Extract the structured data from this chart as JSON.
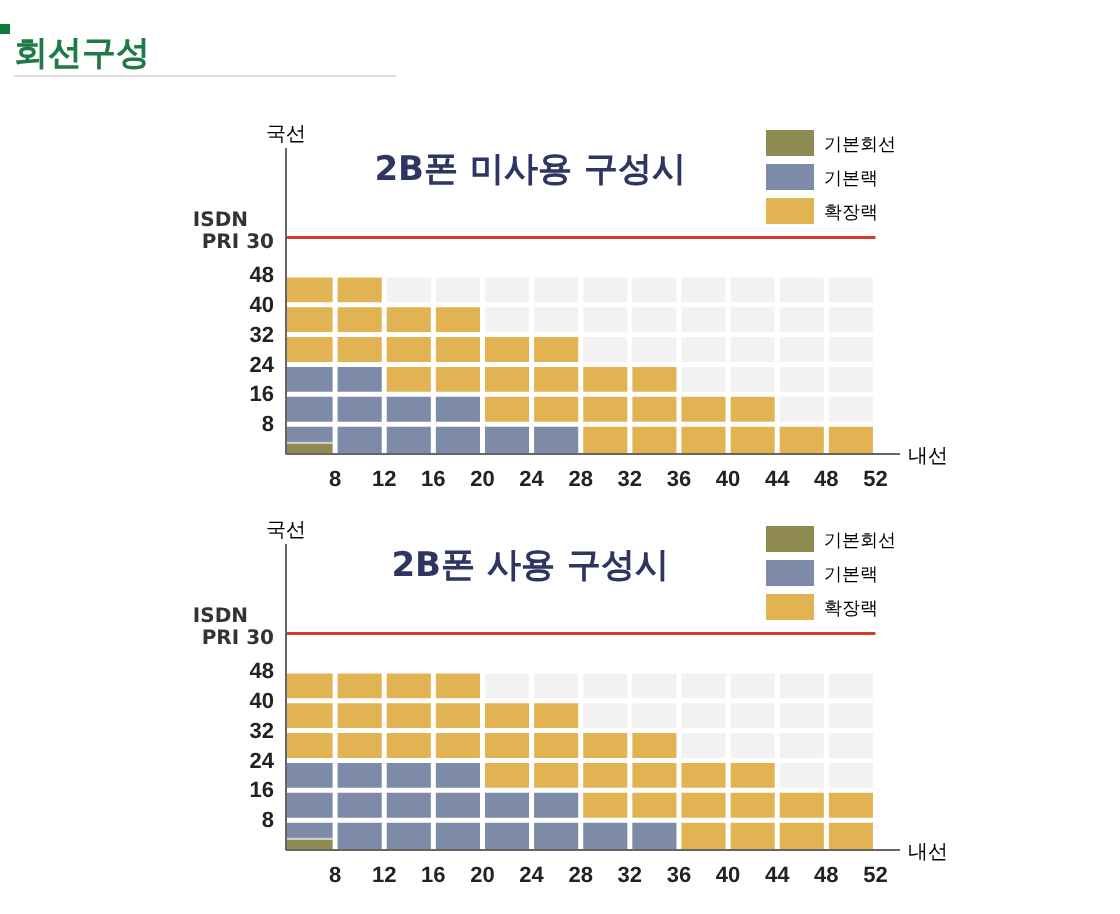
{
  "chart_data": [
    {
      "type": "bar",
      "stacked": true,
      "title": "2B폰 미사용 구성시",
      "xlabel": "내선",
      "ylabel": "국선",
      "annotations": [
        "회선구성"
      ],
      "x": [
        6,
        10,
        14,
        18,
        22,
        26,
        30,
        34,
        38,
        42,
        46,
        50
      ],
      "series": [
        {
          "name": "기본회선",
          "color": "#8f8a52",
          "values": [
            3,
            0,
            0,
            0,
            0,
            0,
            0,
            0,
            0,
            0,
            0,
            0
          ]
        },
        {
          "name": "기본랙",
          "color": "#7d8aa8",
          "values": [
            21,
            24,
            16,
            16,
            8,
            8,
            0,
            0,
            0,
            0,
            0,
            0
          ]
        },
        {
          "name": "확장랙",
          "color": "#e2b352",
          "values": [
            24,
            24,
            24,
            24,
            24,
            24,
            24,
            24,
            16,
            16,
            8,
            8
          ]
        },
        {
          "color": "#f2f2f2",
          "values": [
            0,
            0,
            8,
            8,
            16,
            16,
            24,
            24,
            32,
            32,
            40,
            40
          ]
        }
      ],
      "xlim": [
        4,
        54
      ],
      "xticks": [
        8,
        12,
        16,
        20,
        24,
        28,
        32,
        36,
        40,
        44,
        48,
        52
      ],
      "ylim": [
        0,
        82
      ],
      "yticks": [
        8,
        16,
        24,
        32,
        40,
        48
      ],
      "ref_lines": [
        {
          "axis": "y",
          "value": 58,
          "label": "ISDN PRI 30",
          "color": "#d83a2e"
        }
      ],
      "grid": true,
      "legend": "top right"
    },
    {
      "type": "bar",
      "stacked": true,
      "title": "2B폰 사용 구성시",
      "xlabel": "내선",
      "ylabel": "국선",
      "x": [
        6,
        10,
        14,
        18,
        22,
        26,
        30,
        34,
        38,
        42,
        46,
        50
      ],
      "series": [
        {
          "name": "기본회선",
          "color": "#8f8a52",
          "values": [
            3,
            0,
            0,
            0,
            0,
            0,
            0,
            0,
            0,
            0,
            0,
            0
          ]
        },
        {
          "name": "기본랙",
          "color": "#7d8aa8",
          "values": [
            21,
            24,
            24,
            24,
            16,
            16,
            8,
            8,
            0,
            0,
            0,
            0
          ]
        },
        {
          "name": "확장랙",
          "color": "#e2b352",
          "values": [
            24,
            24,
            24,
            24,
            24,
            24,
            24,
            24,
            24,
            24,
            16,
            16
          ]
        },
        {
          "color": "#f2f2f2",
          "values": [
            0,
            0,
            0,
            0,
            8,
            8,
            16,
            16,
            24,
            24,
            32,
            32
          ]
        }
      ],
      "xlim": [
        4,
        54
      ],
      "xticks": [
        8,
        12,
        16,
        20,
        24,
        28,
        32,
        36,
        40,
        44,
        48,
        52
      ],
      "ylim": [
        0,
        82
      ],
      "yticks": [
        8,
        16,
        24,
        32,
        40,
        48
      ],
      "ref_lines": [
        {
          "axis": "y",
          "value": 58,
          "label": "ISDN PRI 30",
          "color": "#d83a2e"
        }
      ],
      "grid": true,
      "legend": "top right"
    }
  ]
}
